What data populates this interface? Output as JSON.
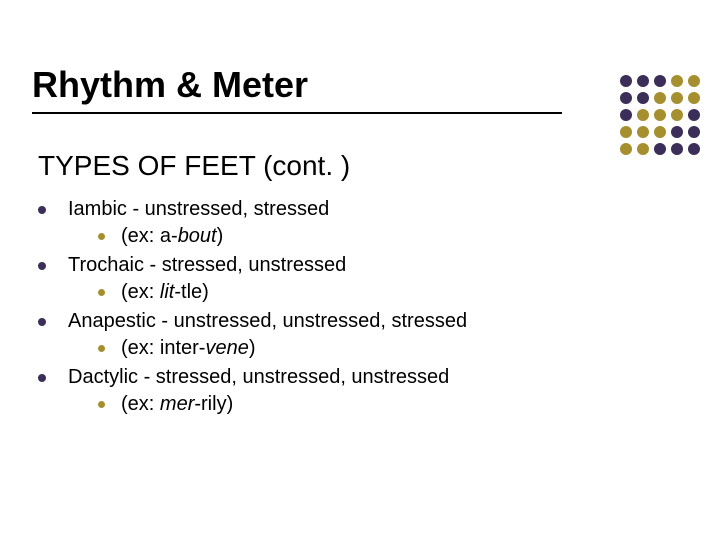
{
  "title": "Rhythm & Meter",
  "subtitle": "TYPES OF FEET (cont. )",
  "bullet_colors": {
    "outer": "#3b2e58",
    "inner": "#a68f2f"
  },
  "items": [
    {
      "label": "Iambic  - unstressed, stressed",
      "example_prefix": "(ex: a-",
      "example_italic": "bout",
      "example_suffix": ")"
    },
    {
      "label": "Trochaic - stressed, unstressed",
      "example_prefix": "(ex: ",
      "example_italic": "lit",
      "example_suffix": "-tle)"
    },
    {
      "label": "Anapestic - unstressed, unstressed, stressed",
      "example_prefix": "(ex: inter-",
      "example_italic": "vene",
      "example_suffix": ")"
    },
    {
      "label": "Dactylic - stressed, unstressed, unstressed",
      "example_prefix": "(ex: ",
      "example_italic": "mer",
      "example_suffix": "-rily)"
    }
  ],
  "dot_grid": {
    "rows": 5,
    "cols": 5,
    "purple": "#3b2e58",
    "olive": "#a68f2f",
    "pattern": [
      [
        "p",
        "p",
        "p",
        "o",
        "o"
      ],
      [
        "p",
        "p",
        "o",
        "o",
        "o"
      ],
      [
        "p",
        "o",
        "o",
        "o",
        "p"
      ],
      [
        "o",
        "o",
        "o",
        "p",
        "p"
      ],
      [
        "o",
        "o",
        "p",
        "p",
        "p"
      ]
    ]
  }
}
